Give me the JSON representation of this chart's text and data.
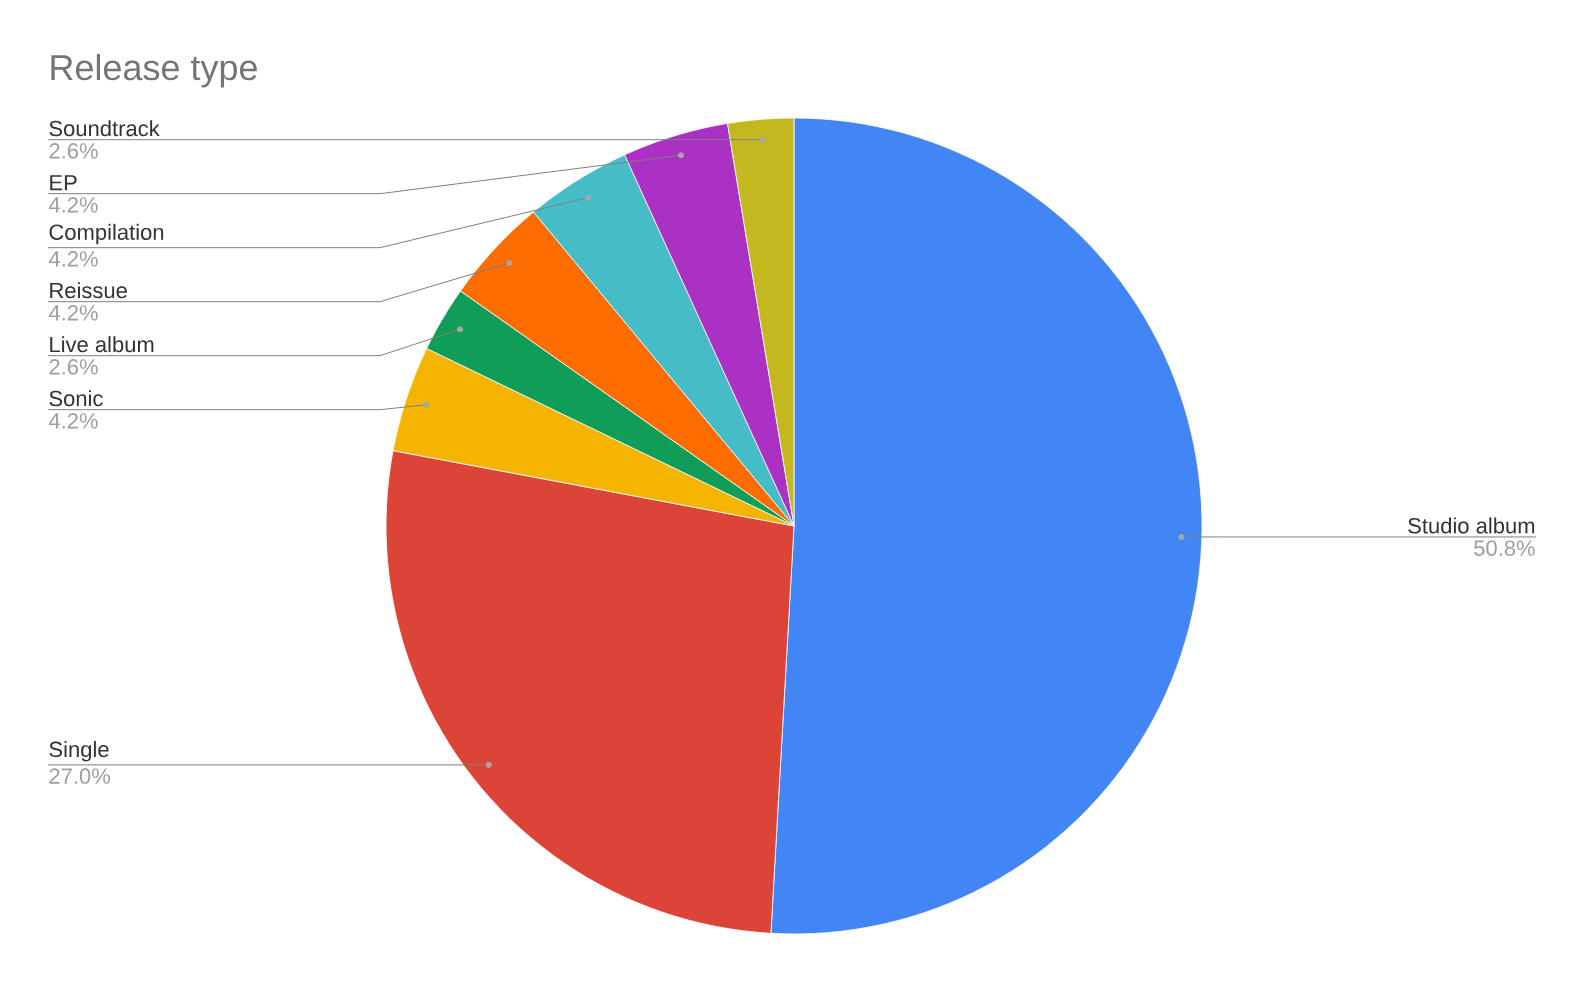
{
  "chart_data": {
    "type": "pie",
    "title": "Release type",
    "categories": [
      "Studio album",
      "Single",
      "Sonic",
      "Live album",
      "Reissue",
      "Compilation",
      "EP",
      "Soundtrack"
    ],
    "values": [
      50.8,
      27.0,
      4.2,
      2.6,
      4.2,
      4.2,
      4.2,
      2.6
    ],
    "colors": [
      "#4285f4",
      "#db4437",
      "#f4b400",
      "#0f9d58",
      "#ff6d01",
      "#46bdc6",
      "#ab30c4",
      "#c4b820"
    ],
    "value_labels": [
      "50.8%",
      "27.0%",
      "4.2%",
      "2.6%",
      "4.2%",
      "4.2%",
      "4.2%",
      "2.6%"
    ]
  }
}
